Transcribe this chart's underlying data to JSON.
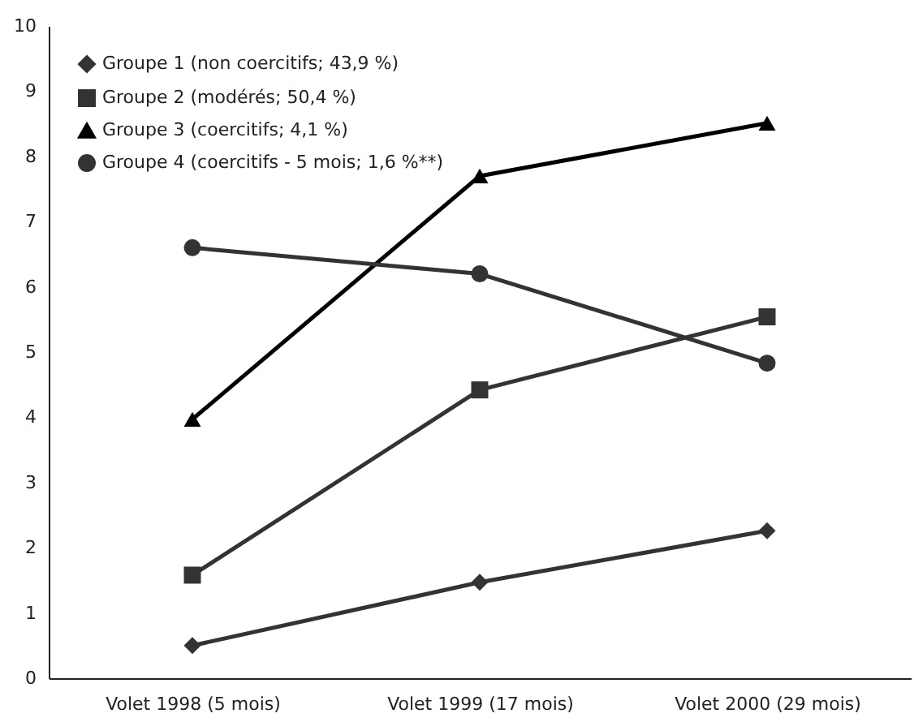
{
  "chart_data": {
    "type": "line",
    "categories": [
      "Volet 1998 (5 mois)",
      "Volet 1999 (17 mois)",
      "Volet 2000 (29 mois)"
    ],
    "series": [
      {
        "name": "Groupe 1 (non coercitifs; 43,9 %)",
        "color": "#333333",
        "marker": "diamond",
        "values": [
          0.5,
          1.47,
          2.26
        ]
      },
      {
        "name": "Groupe 2 (modérés; 50,4 %)",
        "color": "#333333",
        "marker": "square",
        "values": [
          1.58,
          4.42,
          5.54
        ]
      },
      {
        "name": "Groupe 3 (coercitifs; 4,1 %)",
        "color": "#000000",
        "marker": "triangle",
        "values": [
          3.97,
          7.7,
          8.51
        ]
      },
      {
        "name": "Groupe 4 (coercitifs - 5 mois; 1,6 %**)",
        "color": "#333333",
        "marker": "circle",
        "values": [
          6.6,
          6.2,
          4.83
        ]
      }
    ],
    "ylim": [
      0,
      10
    ],
    "yticks": [
      0,
      1,
      2,
      3,
      4,
      5,
      6,
      7,
      8,
      9,
      10
    ],
    "grid": false,
    "legend": "top left",
    "line_style": "solid"
  }
}
